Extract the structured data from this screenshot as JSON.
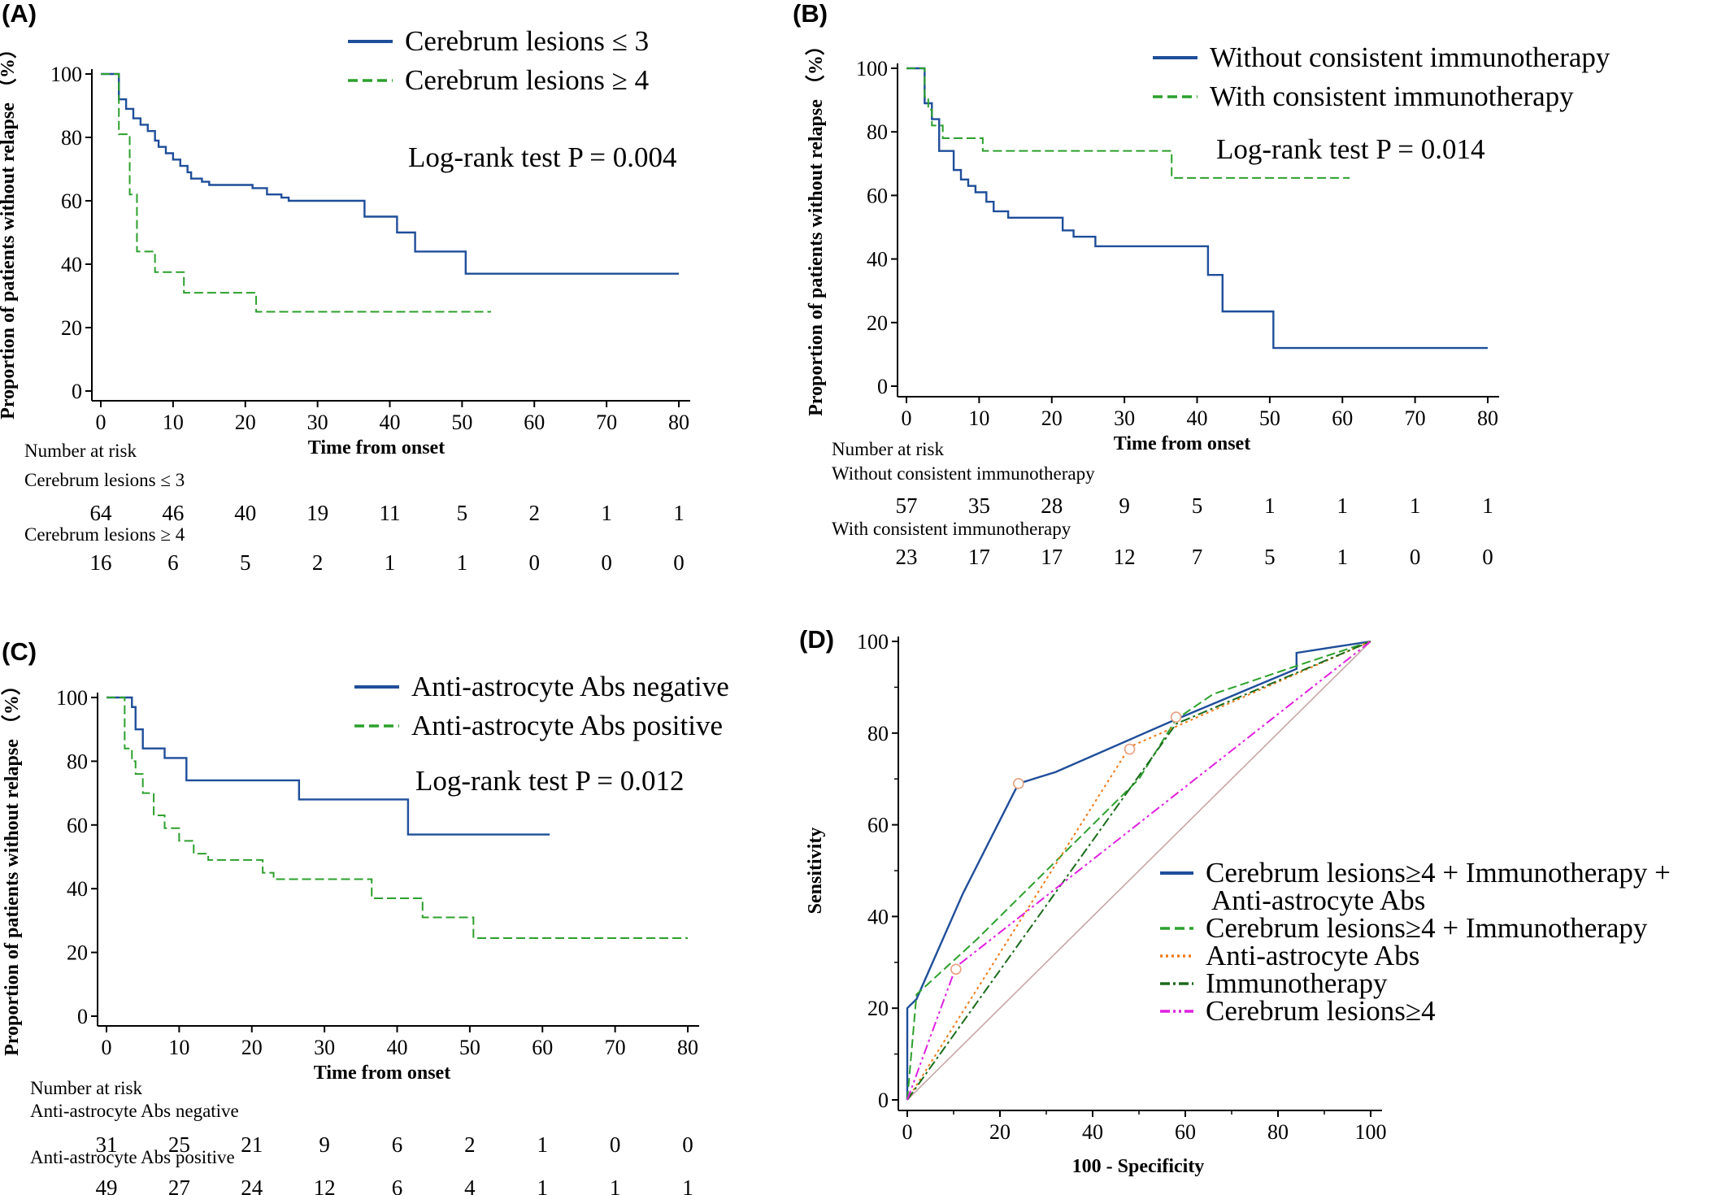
{
  "chart_data": [
    {
      "type": "line",
      "panel_label": "(A)",
      "xlabel": "Time from onset",
      "ylabel": "Proportion of patients without relapse （%）",
      "xlim": [
        0,
        80
      ],
      "ylim": [
        0,
        100
      ],
      "x_ticks": [
        0,
        10,
        20,
        30,
        40,
        50,
        60,
        70,
        80
      ],
      "y_ticks": [
        0,
        20,
        40,
        60,
        80,
        100
      ],
      "grid": false,
      "legend_position": "top-right",
      "annotation": "Log-rank test P = 0.004",
      "series": [
        {
          "name": "Cerebrum lesions ≤ 3",
          "color": "#1f4e9a",
          "style": "solid",
          "steps": [
            [
              0,
              100
            ],
            [
              2,
              100
            ],
            [
              2.5,
              92
            ],
            [
              3.5,
              89
            ],
            [
              4.5,
              86
            ],
            [
              5.5,
              84
            ],
            [
              6.5,
              82
            ],
            [
              7.5,
              79
            ],
            [
              8,
              77
            ],
            [
              9,
              75
            ],
            [
              10,
              73
            ],
            [
              11,
              71
            ],
            [
              12,
              69
            ],
            [
              12.5,
              67
            ],
            [
              14,
              66
            ],
            [
              15,
              65
            ],
            [
              20,
              65
            ],
            [
              21,
              64
            ],
            [
              23,
              62
            ],
            [
              25,
              61
            ],
            [
              26,
              60
            ],
            [
              36,
              60
            ],
            [
              36.5,
              55
            ],
            [
              40,
              55
            ],
            [
              41,
              50
            ],
            [
              43,
              50
            ],
            [
              43.5,
              44
            ],
            [
              50,
              44
            ],
            [
              50.5,
              37
            ],
            [
              80,
              37
            ]
          ]
        },
        {
          "name": "Cerebrum lesions ≥ 4",
          "color": "#2ca02c",
          "style": "dashed",
          "steps": [
            [
              0,
              100
            ],
            [
              2,
              100
            ],
            [
              2.5,
              81
            ],
            [
              3.5,
              81
            ],
            [
              4,
              62
            ],
            [
              4.5,
              62
            ],
            [
              5,
              44
            ],
            [
              7,
              44
            ],
            [
              7.5,
              37.5
            ],
            [
              11,
              37.5
            ],
            [
              11.5,
              31
            ],
            [
              21,
              31
            ],
            [
              21.5,
              25
            ],
            [
              54,
              25
            ]
          ]
        }
      ],
      "risk_table": {
        "title": "Number at risk",
        "times": [
          0,
          10,
          20,
          30,
          40,
          50,
          60,
          70,
          80
        ],
        "groups": [
          {
            "label": "Cerebrum lesions ≤ 3",
            "counts": [
              "64",
              "46",
              "40",
              "19",
              "11",
              "5",
              "2",
              "1",
              "1"
            ]
          },
          {
            "label": "Cerebrum lesions ≥ 4",
            "counts": [
              "16",
              "6",
              "5",
              "2",
              "1",
              "1",
              "0",
              "0",
              "0"
            ]
          }
        ]
      }
    },
    {
      "type": "line",
      "panel_label": "(B)",
      "xlabel": "Time from onset",
      "ylabel": "Proportion of patients without relapse （%）",
      "xlim": [
        0,
        80
      ],
      "ylim": [
        0,
        100
      ],
      "x_ticks": [
        0,
        10,
        20,
        30,
        40,
        50,
        60,
        70,
        80
      ],
      "y_ticks": [
        0,
        20,
        40,
        60,
        80,
        100
      ],
      "grid": false,
      "legend_position": "top-right",
      "annotation": "Log-rank test P = 0.014",
      "series": [
        {
          "name": "Without consistent immunotherapy",
          "color": "#1f4e9a",
          "style": "solid",
          "steps": [
            [
              0,
              100
            ],
            [
              2,
              100
            ],
            [
              2.5,
              89
            ],
            [
              3.5,
              84
            ],
            [
              4.5,
              74
            ],
            [
              6.5,
              68
            ],
            [
              7.5,
              65
            ],
            [
              8.5,
              63
            ],
            [
              9.5,
              61
            ],
            [
              11,
              58
            ],
            [
              12,
              55
            ],
            [
              14,
              53
            ],
            [
              21,
              53
            ],
            [
              21.5,
              49
            ],
            [
              23,
              47
            ],
            [
              26,
              44
            ],
            [
              41,
              44
            ],
            [
              41.5,
              35
            ],
            [
              43,
              35
            ],
            [
              43.5,
              23.5
            ],
            [
              50,
              23.5
            ],
            [
              50.5,
              12
            ],
            [
              80,
              12
            ]
          ]
        },
        {
          "name": "With consistent immunotherapy",
          "color": "#2ca02c",
          "style": "dashed",
          "steps": [
            [
              0,
              100
            ],
            [
              2,
              100
            ],
            [
              2.5,
              91
            ],
            [
              3,
              87
            ],
            [
              3.5,
              82
            ],
            [
              5,
              78
            ],
            [
              10,
              78
            ],
            [
              10.5,
              74
            ],
            [
              36,
              74
            ],
            [
              36.5,
              65.5
            ],
            [
              61,
              65.5
            ]
          ]
        }
      ],
      "risk_table": {
        "title": "Number at risk",
        "times": [
          0,
          10,
          20,
          30,
          40,
          50,
          60,
          70,
          80
        ],
        "groups": [
          {
            "label": "Without consistent immunotherapy",
            "counts": [
              "57",
              "35",
              "28",
              "9",
              "5",
              "1",
              "1",
              "1",
              "1"
            ]
          },
          {
            "label": "With consistent immunotherapy",
            "counts": [
              "23",
              "17",
              "17",
              "12",
              "7",
              "5",
              "1",
              "0",
              "0"
            ]
          }
        ]
      }
    },
    {
      "type": "line",
      "panel_label": "(C)",
      "xlabel": "Time from onset",
      "ylabel": "Proportion of patients without relapse （%）",
      "xlim": [
        0,
        80
      ],
      "ylim": [
        0,
        100
      ],
      "x_ticks": [
        0,
        10,
        20,
        30,
        40,
        50,
        60,
        70,
        80
      ],
      "y_ticks": [
        0,
        20,
        40,
        60,
        80,
        100
      ],
      "grid": false,
      "legend_position": "top-right",
      "annotation": "Log-rank test P = 0.012",
      "series": [
        {
          "name": "Anti-astrocyte Abs negative",
          "color": "#1f4e9a",
          "style": "solid",
          "steps": [
            [
              0,
              100
            ],
            [
              3,
              100
            ],
            [
              3.5,
              97
            ],
            [
              4,
              90
            ],
            [
              5,
              84
            ],
            [
              8,
              81
            ],
            [
              11,
              74
            ],
            [
              26,
              74
            ],
            [
              26.5,
              68
            ],
            [
              41,
              68
            ],
            [
              41.5,
              57
            ],
            [
              61,
              57
            ]
          ]
        },
        {
          "name": "Anti-astrocyte Abs positive",
          "color": "#2ca02c",
          "style": "dashed",
          "steps": [
            [
              0,
              100
            ],
            [
              2,
              100
            ],
            [
              2.5,
              84
            ],
            [
              3.5,
              80
            ],
            [
              4,
              76
            ],
            [
              5,
              70
            ],
            [
              6.5,
              63
            ],
            [
              8,
              59
            ],
            [
              10,
              55
            ],
            [
              12,
              51
            ],
            [
              14,
              49
            ],
            [
              21,
              49
            ],
            [
              21.5,
              45
            ],
            [
              23,
              43
            ],
            [
              36,
              43
            ],
            [
              36.5,
              37
            ],
            [
              43,
              37
            ],
            [
              43.5,
              31
            ],
            [
              50,
              31
            ],
            [
              50.5,
              24.5
            ],
            [
              80,
              24.5
            ]
          ]
        }
      ],
      "risk_table": {
        "title": "Number at risk",
        "times": [
          0,
          10,
          20,
          30,
          40,
          50,
          60,
          70,
          80
        ],
        "groups": [
          {
            "label": "Anti-astrocyte Abs negative",
            "counts": [
              "31",
              "25",
              "21",
              "9",
              "6",
              "2",
              "1",
              "0",
              "0"
            ]
          },
          {
            "label": "Anti-astrocyte Abs positive",
            "counts": [
              "49",
              "27",
              "24",
              "12",
              "6",
              "4",
              "1",
              "1",
              "1"
            ]
          }
        ]
      }
    },
    {
      "type": "line",
      "panel_label": "(D)",
      "xlabel": "100 - Specificity",
      "ylabel": "Sensitivity",
      "xlim": [
        0,
        100
      ],
      "ylim": [
        0,
        100
      ],
      "x_ticks": [
        0,
        20,
        40,
        60,
        80,
        100
      ],
      "y_ticks": [
        0,
        20,
        40,
        60,
        80,
        100
      ],
      "grid": false,
      "legend_position": "right",
      "reference_line": {
        "points": [
          [
            0,
            0
          ],
          [
            100,
            100
          ]
        ],
        "color": "#c9a6a6"
      },
      "series": [
        {
          "name": "Cerebrum lesions≥4 + Immunotherapy + Anti-astrocyte Abs",
          "legend_lines": [
            "Cerebrum lesions≥4 + Immunotherapy +",
            "Anti-astrocyte Abs"
          ],
          "color": "#1f4e9a",
          "style": "solid",
          "points": [
            [
              0,
              0
            ],
            [
              0,
              20
            ],
            [
              2,
              22
            ],
            [
              12,
              45
            ],
            [
              22,
              65
            ],
            [
              24,
              69
            ],
            [
              32,
              71.5
            ],
            [
              58,
              83
            ],
            [
              84,
              94
            ],
            [
              84,
              97.5
            ],
            [
              100,
              100
            ]
          ],
          "marker": [
            24,
            69
          ]
        },
        {
          "name": "Cerebrum lesions≥4 + Immunotherapy",
          "legend_lines": [
            "Cerebrum lesions≥4 + Immunotherapy"
          ],
          "color": "#2ca02c",
          "style": "dashed",
          "points": [
            [
              0,
              0
            ],
            [
              2,
              23
            ],
            [
              15,
              35
            ],
            [
              50,
              70
            ],
            [
              58,
              83
            ],
            [
              66,
              88.5
            ],
            [
              85,
              95
            ],
            [
              100,
              100
            ]
          ],
          "marker": [
            58,
            83.5
          ]
        },
        {
          "name": "Anti-astrocyte Abs",
          "legend_lines": [
            "Anti-astrocyte Abs"
          ],
          "color": "#f07b1a",
          "style": "dotted",
          "points": [
            [
              0,
              0
            ],
            [
              48,
              77
            ],
            [
              100,
              100
            ]
          ],
          "marker": [
            48,
            76.5
          ]
        },
        {
          "name": "Immunotherapy",
          "legend_lines": [
            "Immunotherapy"
          ],
          "color": "#1b6b1b",
          "style": "dashdot",
          "points": [
            [
              0,
              0
            ],
            [
              58,
              82
            ],
            [
              100,
              100
            ]
          ]
        },
        {
          "name": "Cerebrum lesions≥4",
          "legend_lines": [
            "Cerebrum lesions≥4"
          ],
          "color": "#e020e0",
          "style": "dashdotdot",
          "points": [
            [
              0,
              0
            ],
            [
              10.5,
              29
            ],
            [
              100,
              100
            ]
          ],
          "marker": [
            10.5,
            28.5
          ]
        }
      ]
    }
  ]
}
